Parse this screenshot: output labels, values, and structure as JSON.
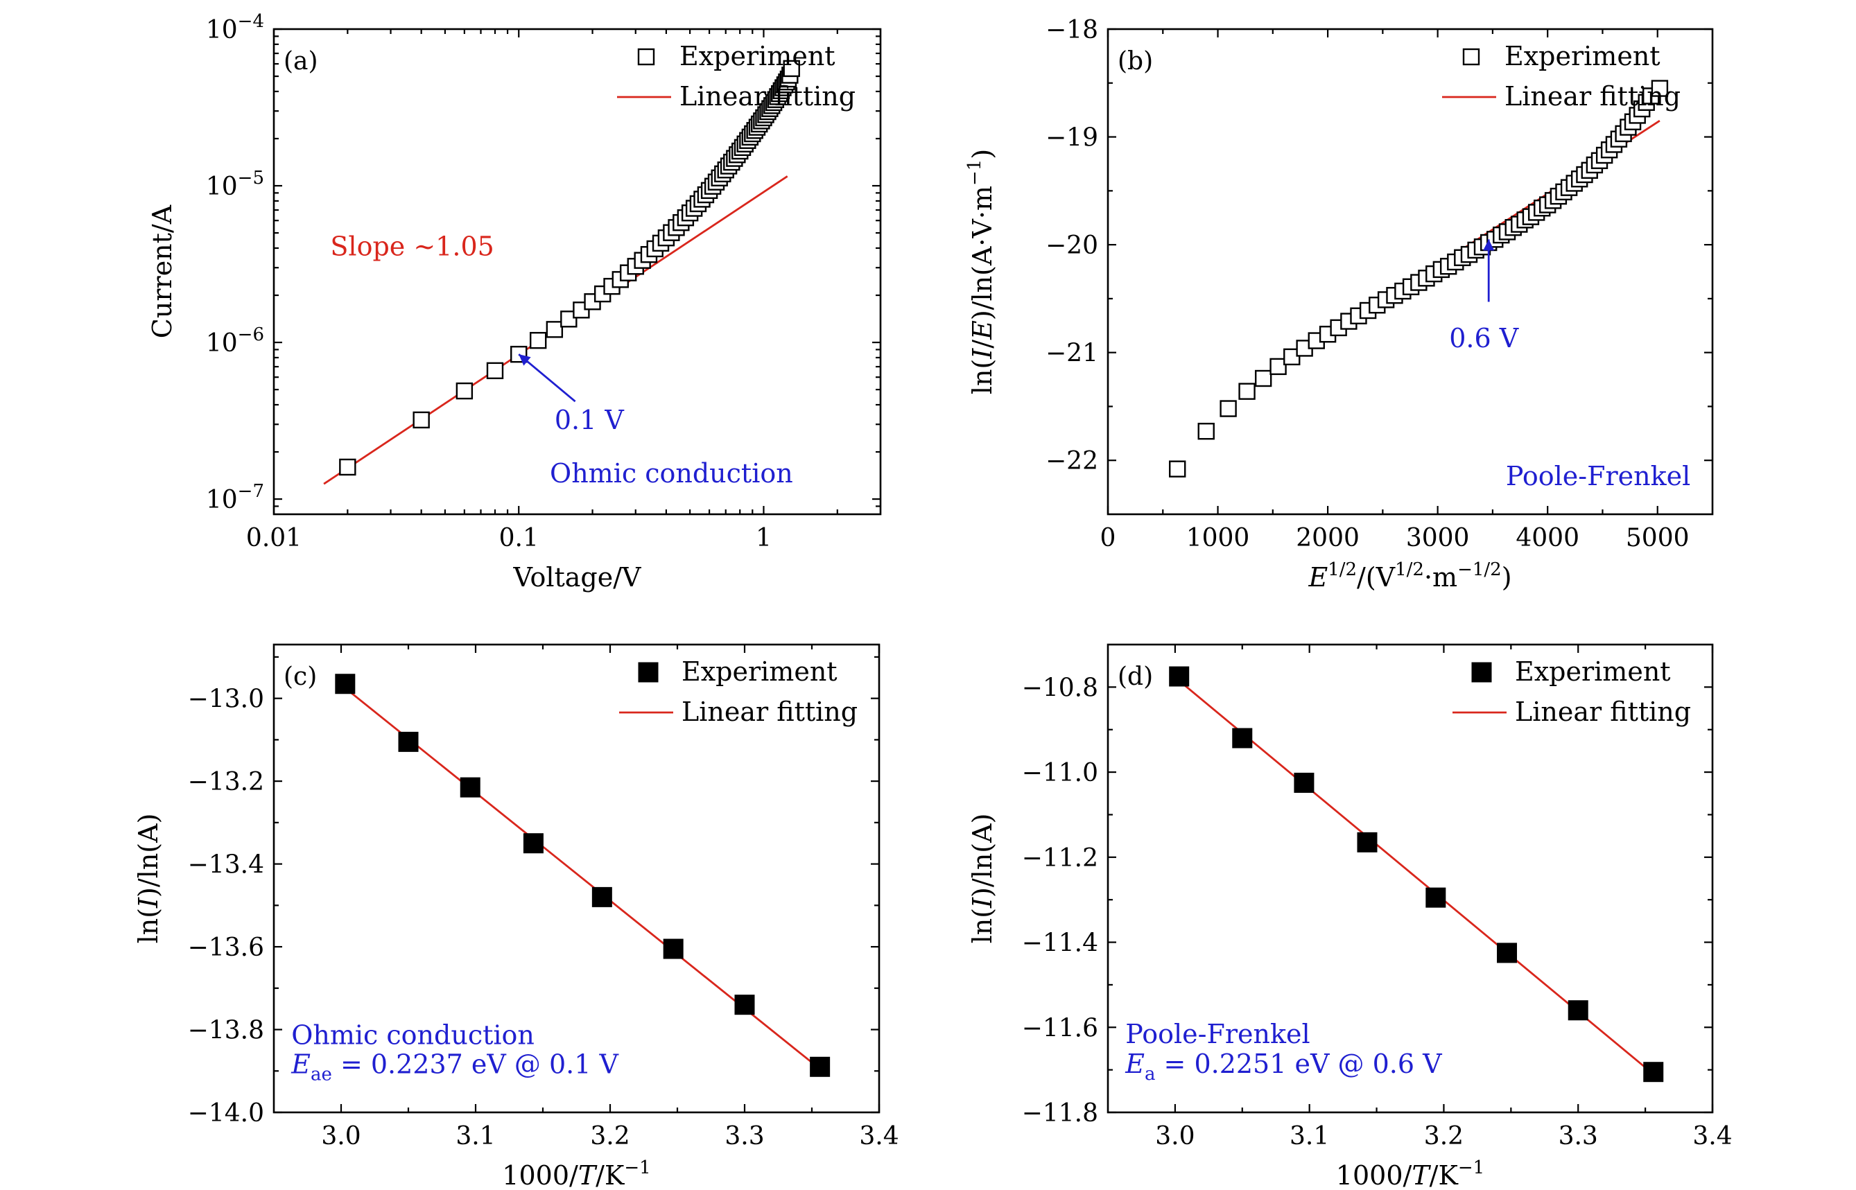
{
  "chart_data": [
    {
      "panel": "a",
      "type": "scatter",
      "panel_label": "(a)",
      "xlabel": "Voltage/V",
      "ylabel": "Current/A",
      "xscale": "log",
      "yscale": "log",
      "xlim": [
        0.01,
        3.0
      ],
      "ylim": [
        8e-08,
        0.0001
      ],
      "x_ticks": [
        {
          "value": 0.01,
          "label": "0.01"
        },
        {
          "value": 0.1,
          "label": "0.1"
        },
        {
          "value": 1,
          "label": "1"
        }
      ],
      "y_ticks": [
        {
          "value": 1e-07,
          "base": "10",
          "exp": "−7"
        },
        {
          "value": 1e-06,
          "base": "10",
          "exp": "−6"
        },
        {
          "value": 1e-05,
          "base": "10",
          "exp": "−5"
        },
        {
          "value": 0.0001,
          "base": "10",
          "exp": "−4"
        }
      ],
      "legend": [
        {
          "kind": "open-square",
          "label": "Experiment"
        },
        {
          "kind": "line",
          "label": "Linear fitting"
        }
      ],
      "legend_placement": "top-right",
      "series": [
        {
          "name": "Experiment",
          "marker": "open-square",
          "points": [
            [
              0.02,
              1.6e-07
            ],
            [
              0.04,
              3.2e-07
            ],
            [
              0.06,
              4.9e-07
            ],
            [
              0.08,
              6.6e-07
            ],
            [
              0.1,
              8.4e-07
            ],
            [
              0.12,
              1.03e-06
            ],
            [
              0.14,
              1.21e-06
            ],
            [
              0.16,
              1.41e-06
            ],
            [
              0.18,
              1.61e-06
            ],
            [
              0.2,
              1.82e-06
            ],
            [
              0.22,
              2.04e-06
            ],
            [
              0.24,
              2.28e-06
            ],
            [
              0.26,
              2.52e-06
            ],
            [
              0.28,
              2.78e-06
            ],
            [
              0.3,
              3.06e-06
            ],
            [
              0.32,
              3.34e-06
            ],
            [
              0.34,
              3.64e-06
            ],
            [
              0.36,
              3.96e-06
            ],
            [
              0.38,
              4.3e-06
            ],
            [
              0.4,
              4.65e-06
            ],
            [
              0.42,
              5.02e-06
            ],
            [
              0.44,
              5.41e-06
            ],
            [
              0.46,
              5.82e-06
            ],
            [
              0.48,
              6.25e-06
            ],
            [
              0.5,
              6.71e-06
            ],
            [
              0.52,
              7.18e-06
            ],
            [
              0.54,
              7.68e-06
            ],
            [
              0.56,
              8.21e-06
            ],
            [
              0.58,
              8.76e-06
            ],
            [
              0.6,
              9.33e-06
            ],
            [
              0.62,
              9.93e-06
            ],
            [
              0.64,
              1.056e-05
            ],
            [
              0.66,
              1.122e-05
            ],
            [
              0.68,
              1.191e-05
            ],
            [
              0.7,
              1.262e-05
            ],
            [
              0.72,
              1.337e-05
            ],
            [
              0.74,
              1.414e-05
            ],
            [
              0.76,
              1.495e-05
            ],
            [
              0.78,
              1.578e-05
            ],
            [
              0.8,
              1.665e-05
            ],
            [
              0.82,
              1.755e-05
            ],
            [
              0.84,
              1.848e-05
            ],
            [
              0.86,
              1.945e-05
            ],
            [
              0.88,
              2.045e-05
            ],
            [
              0.9,
              2.148e-05
            ],
            [
              0.92,
              2.254e-05
            ],
            [
              0.94,
              2.364e-05
            ],
            [
              0.96,
              2.478e-05
            ],
            [
              0.98,
              2.595e-05
            ],
            [
              1.0,
              2.716e-05
            ],
            [
              1.02,
              2.842e-05
            ],
            [
              1.04,
              2.973e-05
            ],
            [
              1.06,
              3.108e-05
            ],
            [
              1.08,
              3.249e-05
            ],
            [
              1.1,
              3.396e-05
            ],
            [
              1.12,
              3.548e-05
            ],
            [
              1.14,
              3.708e-05
            ],
            [
              1.16,
              3.874e-05
            ],
            [
              1.18,
              4.046e-05
            ],
            [
              1.2,
              4.224e-05
            ],
            [
              1.22,
              4.409e-05
            ],
            [
              1.24,
              4.6e-05
            ],
            [
              1.26,
              4.8e-05
            ],
            [
              1.28,
              5.08e-05
            ],
            [
              1.3,
              5.6e-05
            ]
          ]
        },
        {
          "name": "Linear fitting",
          "marker": "line",
          "color": "#d9261c",
          "points": [
            [
              0.016,
              1.25e-07
            ],
            [
              1.25,
              1.15e-05
            ]
          ]
        }
      ],
      "annotations": [
        {
          "text": "Slope ~1.05",
          "color": "#d9261c",
          "at": [
            0.017,
            3.6e-06
          ]
        },
        {
          "text": "0.1 V",
          "color": "#1f1fd0",
          "at": [
            0.14,
            2.8e-07
          ],
          "arrow_from": [
            0.17,
            4.2e-07
          ],
          "arrow_to": [
            0.1,
            8.4e-07
          ]
        },
        {
          "text": "Ohmic conduction",
          "color": "#1f1fd0",
          "at": [
            0.42,
            1.28e-07
          ],
          "anchor": "middle"
        }
      ]
    },
    {
      "panel": "b",
      "type": "scatter",
      "panel_label": "(b)",
      "xlabel": {
        "pre": "E",
        "sup1": "1/2",
        "mid": "/(V",
        "sup2": "1/2",
        "mid2": "·m",
        "sup3": "−1/2",
        "post": ")"
      },
      "ylabel": {
        "pre": "ln(",
        "ital": "I",
        "mid": "/",
        "ital2": "E",
        "post": ")/ln(A·V·m",
        "sup": "−1",
        "end": ")"
      },
      "xlim": [
        0,
        5500
      ],
      "ylim": [
        -22.5,
        -18
      ],
      "x_ticks": [
        {
          "value": 0,
          "label": "0"
        },
        {
          "value": 1000,
          "label": "1000"
        },
        {
          "value": 2000,
          "label": "2000"
        },
        {
          "value": 3000,
          "label": "3000"
        },
        {
          "value": 4000,
          "label": "4000"
        },
        {
          "value": 5000,
          "label": "5000"
        }
      ],
      "y_ticks": [
        {
          "value": -22,
          "label": "−22"
        },
        {
          "value": -21,
          "label": "−21"
        },
        {
          "value": -20,
          "label": "−20"
        },
        {
          "value": -19,
          "label": "−19"
        },
        {
          "value": -18,
          "label": "−18"
        }
      ],
      "legend": [
        {
          "kind": "open-square",
          "label": "Experiment"
        },
        {
          "kind": "line",
          "label": "Linear fitting"
        }
      ],
      "legend_placement": "top-right",
      "series": [
        {
          "name": "Experiment",
          "marker": "open-square",
          "points": [
            [
              632,
              -22.08
            ],
            [
              894,
              -21.73
            ],
            [
              1095,
              -21.52
            ],
            [
              1265,
              -21.36
            ],
            [
              1414,
              -21.24
            ],
            [
              1549,
              -21.13
            ],
            [
              1673,
              -21.04
            ],
            [
              1789,
              -20.96
            ],
            [
              1897,
              -20.89
            ],
            [
              2000,
              -20.83
            ],
            [
              2098,
              -20.77
            ],
            [
              2191,
              -20.71
            ],
            [
              2280,
              -20.66
            ],
            [
              2366,
              -20.61
            ],
            [
              2449,
              -20.56
            ],
            [
              2530,
              -20.51
            ],
            [
              2608,
              -20.47
            ],
            [
              2683,
              -20.43
            ],
            [
              2757,
              -20.39
            ],
            [
              2828,
              -20.35
            ],
            [
              2898,
              -20.31
            ],
            [
              2966,
              -20.27
            ],
            [
              3033,
              -20.23
            ],
            [
              3098,
              -20.2
            ],
            [
              3162,
              -20.16
            ],
            [
              3225,
              -20.12
            ],
            [
              3286,
              -20.09
            ],
            [
              3347,
              -20.05
            ],
            [
              3406,
              -20.02
            ],
            [
              3464,
              -19.98
            ],
            [
              3521,
              -19.95
            ],
            [
              3578,
              -19.91
            ],
            [
              3633,
              -19.88
            ],
            [
              3688,
              -19.84
            ],
            [
              3742,
              -19.81
            ],
            [
              3795,
              -19.77
            ],
            [
              3847,
              -19.74
            ],
            [
              3899,
              -19.7
            ],
            [
              3950,
              -19.66
            ],
            [
              4000,
              -19.63
            ],
            [
              4050,
              -19.59
            ],
            [
              4099,
              -19.55
            ],
            [
              4147,
              -19.51
            ],
            [
              4195,
              -19.47
            ],
            [
              4243,
              -19.43
            ],
            [
              4290,
              -19.39
            ],
            [
              4336,
              -19.35
            ],
            [
              4382,
              -19.31
            ],
            [
              4427,
              -19.26
            ],
            [
              4472,
              -19.22
            ],
            [
              4517,
              -19.17
            ],
            [
              4561,
              -19.12
            ],
            [
              4604,
              -19.07
            ],
            [
              4648,
              -19.02
            ],
            [
              4690,
              -18.97
            ],
            [
              4733,
              -18.91
            ],
            [
              4775,
              -18.86
            ],
            [
              4817,
              -18.8
            ],
            [
              4858,
              -18.74
            ],
            [
              4899,
              -18.68
            ],
            [
              4940,
              -18.62
            ],
            [
              5020,
              -18.55
            ]
          ]
        },
        {
          "name": "Linear fitting",
          "marker": "line",
          "color": "#d9261c",
          "points": [
            [
              1780,
              -21.0
            ],
            [
              5020,
              -18.85
            ]
          ]
        }
      ],
      "annotations": [
        {
          "text": "0.6 V",
          "color": "#1f1fd0",
          "at": [
            3420,
            -20.95
          ],
          "anchor": "middle",
          "arrow_from": [
            3464,
            -20.53
          ],
          "arrow_to": [
            3464,
            -19.95
          ]
        },
        {
          "text": "Poole-Frenkel",
          "color": "#1f1fd0",
          "at": [
            5300,
            -22.23
          ],
          "anchor": "end"
        }
      ]
    },
    {
      "panel": "c",
      "type": "scatter",
      "panel_label": "(c)",
      "xlabel": {
        "pre": "1000/",
        "ital": "T",
        "post": "/K",
        "sup": "−1"
      },
      "ylabel": {
        "pre": "ln(",
        "ital": "I",
        "post": ")/ln(A)"
      },
      "xlim": [
        2.95,
        3.4
      ],
      "ylim": [
        -14.0,
        -12.87
      ],
      "x_ticks": [
        {
          "value": 3.0,
          "label": "3.0"
        },
        {
          "value": 3.1,
          "label": "3.1"
        },
        {
          "value": 3.2,
          "label": "3.2"
        },
        {
          "value": 3.3,
          "label": "3.3"
        },
        {
          "value": 3.4,
          "label": "3.4"
        }
      ],
      "y_ticks": [
        {
          "value": -14.0,
          "label": "−14.0"
        },
        {
          "value": -13.8,
          "label": "−13.8"
        },
        {
          "value": -13.6,
          "label": "−13.6"
        },
        {
          "value": -13.4,
          "label": "−13.4"
        },
        {
          "value": -13.2,
          "label": "−13.2"
        },
        {
          "value": -13.0,
          "label": "−13.0"
        }
      ],
      "legend": [
        {
          "kind": "filled-square",
          "label": "Experiment"
        },
        {
          "kind": "line",
          "label": "Linear fitting"
        }
      ],
      "legend_placement": "top-right",
      "series": [
        {
          "name": "Experiment",
          "marker": "filled-square",
          "points": [
            [
              3.003,
              -12.965
            ],
            [
              3.05,
              -13.105
            ],
            [
              3.096,
              -13.215
            ],
            [
              3.143,
              -13.35
            ],
            [
              3.194,
              -13.48
            ],
            [
              3.247,
              -13.605
            ],
            [
              3.3,
              -13.74
            ],
            [
              3.356,
              -13.89
            ]
          ]
        },
        {
          "name": "Linear fitting",
          "marker": "line",
          "color": "#d9261c",
          "points": [
            [
              3.003,
              -12.975
            ],
            [
              3.356,
              -13.895
            ]
          ]
        }
      ],
      "annotations": [
        {
          "text": "Ohmic conduction",
          "color": "#1f1fd0",
          "at": [
            2.963,
            -13.835
          ]
        },
        {
          "pre": "E",
          "sub": "ae",
          "post": " = 0.2237 eV @ 0.1 V",
          "color": "#1f1fd0",
          "at": [
            2.963,
            -13.905
          ]
        }
      ]
    },
    {
      "panel": "d",
      "type": "scatter",
      "panel_label": "(d)",
      "xlabel": {
        "pre": "1000/",
        "ital": "T",
        "post": "/K",
        "sup": "−1"
      },
      "ylabel": {
        "pre": "ln(",
        "ital": "I",
        "post": ")/ln(A)"
      },
      "xlim": [
        2.95,
        3.4
      ],
      "ylim": [
        -11.8,
        -10.7
      ],
      "x_ticks": [
        {
          "value": 3.0,
          "label": "3.0"
        },
        {
          "value": 3.1,
          "label": "3.1"
        },
        {
          "value": 3.2,
          "label": "3.2"
        },
        {
          "value": 3.3,
          "label": "3.3"
        },
        {
          "value": 3.4,
          "label": "3.4"
        }
      ],
      "y_ticks": [
        {
          "value": -11.8,
          "label": "−11.8"
        },
        {
          "value": -11.6,
          "label": "−11.6"
        },
        {
          "value": -11.4,
          "label": "−11.4"
        },
        {
          "value": -11.2,
          "label": "−11.2"
        },
        {
          "value": -11.0,
          "label": "−11.0"
        },
        {
          "value": -10.8,
          "label": "−10.8"
        }
      ],
      "legend": [
        {
          "kind": "filled-square",
          "label": "Experiment"
        },
        {
          "kind": "line",
          "label": "Linear fitting"
        }
      ],
      "legend_placement": "top-right",
      "series": [
        {
          "name": "Experiment",
          "marker": "filled-square",
          "points": [
            [
              3.003,
              -10.775
            ],
            [
              3.05,
              -10.92
            ],
            [
              3.096,
              -11.025
            ],
            [
              3.143,
              -11.165
            ],
            [
              3.194,
              -11.295
            ],
            [
              3.247,
              -11.425
            ],
            [
              3.3,
              -11.56
            ],
            [
              3.356,
              -11.705
            ]
          ]
        },
        {
          "name": "Linear fitting",
          "marker": "line",
          "color": "#d9261c",
          "points": [
            [
              3.003,
              -10.785
            ],
            [
              3.356,
              -11.71
            ]
          ]
        }
      ],
      "annotations": [
        {
          "text": "Poole-Frenkel",
          "color": "#1f1fd0",
          "at": [
            2.963,
            -11.637
          ]
        },
        {
          "pre": "E",
          "sub": "a",
          "post": " = 0.2251 eV @ 0.6 V",
          "color": "#1f1fd0",
          "at": [
            2.963,
            -11.707
          ]
        }
      ]
    }
  ]
}
